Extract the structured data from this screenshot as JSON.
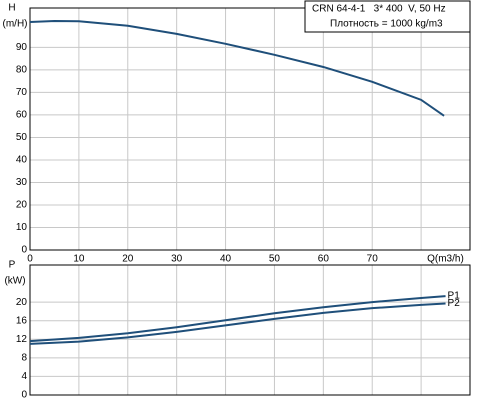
{
  "chart_data": [
    {
      "type": "line",
      "ylabel": [
        "H",
        "(m/H)"
      ],
      "info": [
        "CRN 64-4-1   3* 400  V, 50 Hz",
        "Плотность = 1000 kg/m3"
      ],
      "x": [
        0,
        5,
        10,
        20,
        30,
        40,
        50,
        60,
        70,
        80,
        84.7
      ],
      "series": [
        {
          "name": "H",
          "color": "#1f4f7a",
          "values": [
            101.3,
            101.7,
            101.6,
            99.6,
            96,
            91.6,
            86.7,
            81.3,
            74.7,
            66.7,
            59.6
          ]
        }
      ],
      "xlim": [
        0,
        90
      ],
      "xticks": [
        0,
        10,
        20,
        30,
        40,
        50,
        60,
        70,
        {
          "value": 80,
          "label": "Q(m3/h)"
        }
      ],
      "ylim": [
        0,
        107.5
      ],
      "yticks": [
        0,
        10,
        20,
        30,
        40,
        50,
        60,
        70,
        80,
        90
      ],
      "grid": true
    },
    {
      "type": "line",
      "ylabel": [
        "P",
        "(kW)"
      ],
      "x": [
        0,
        10,
        20,
        30,
        40,
        50,
        60,
        70,
        80,
        85
      ],
      "series": [
        {
          "name": "P1",
          "color": "#1f4f7a",
          "values": [
            11.6,
            12.3,
            13.3,
            14.6,
            16.1,
            17.6,
            18.9,
            20,
            20.9,
            21.3
          ]
        },
        {
          "name": "P2",
          "color": "#1f4f7a",
          "values": [
            11,
            11.5,
            12.4,
            13.6,
            15,
            16.4,
            17.7,
            18.7,
            19.4,
            19.7
          ]
        }
      ],
      "xlim": [
        0,
        90
      ],
      "xticks": [
        0,
        10,
        20,
        30,
        40,
        50,
        60,
        70,
        80
      ],
      "ylim": [
        0,
        28
      ],
      "yticks": [
        0,
        4,
        8,
        12,
        16,
        20
      ],
      "grid": true
    }
  ]
}
